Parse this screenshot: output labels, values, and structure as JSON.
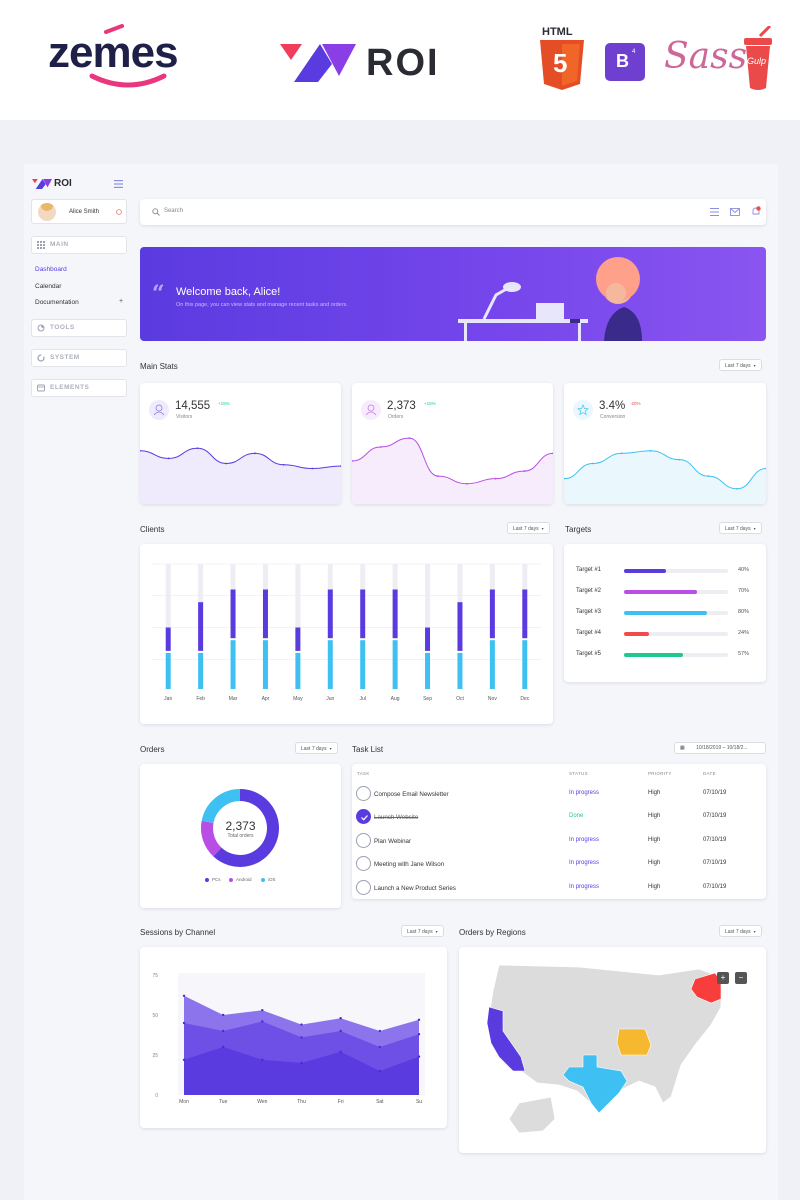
{
  "brand": {
    "zemes": "zemes",
    "roi": "ROI",
    "html_label": "HTML",
    "html_num": "5",
    "bootstrap": "B",
    "bootstrap_ver": "4",
    "sass": "Sass",
    "gulp": "Gulp"
  },
  "sidebar": {
    "logo": "ROI",
    "user_name": "Alice Smith",
    "main_label": "MAIN",
    "links": [
      "Dashboard",
      "Calendar",
      "Documentation"
    ],
    "doc_plus": "+",
    "sections": [
      "TOOLS",
      "SYSTEM",
      "ELEMENTS"
    ]
  },
  "header": {
    "search_placeholder": "Search"
  },
  "welcome": {
    "title": "Welcome back, Alice!",
    "subtitle": "On this page, you can view stats and manage recent tasks and orders."
  },
  "main_stats": {
    "title": "Main Stats",
    "range": "Last 7 days",
    "cards": [
      {
        "value": "14,555",
        "change": "+15%",
        "label": "Visitors",
        "color": "#5a3be0",
        "fill": "#efeafc"
      },
      {
        "value": "2,373",
        "change": "+15%",
        "label": "Orders",
        "color": "#b84ee6",
        "fill": "#f7ecfc"
      },
      {
        "value": "3.4%",
        "change": "-20%",
        "label": "Conversion",
        "color": "#3ec1f2",
        "fill": "#eaf7fd"
      }
    ]
  },
  "clients": {
    "title": "Clients",
    "range": "Last 7 days"
  },
  "targets": {
    "title": "Targets",
    "range": "Last 7 days",
    "items": [
      {
        "label": "Target #1",
        "pct": "40%",
        "value": 0.4,
        "color": "#5a3be0"
      },
      {
        "label": "Target #2",
        "pct": "70%",
        "value": 0.7,
        "color": "#b84ee6"
      },
      {
        "label": "Target #3",
        "pct": "80%",
        "value": 0.8,
        "color": "#3ec1f2"
      },
      {
        "label": "Target #4",
        "pct": "24%",
        "value": 0.24,
        "color": "#f24a4a"
      },
      {
        "label": "Target #5",
        "pct": "57%",
        "value": 0.57,
        "color": "#1fc98e"
      }
    ]
  },
  "orders": {
    "title": "Orders",
    "range": "Last 7 days",
    "total": "2,373",
    "total_label": "Total orders",
    "legend": [
      {
        "name": "PCs",
        "color": "#5a3be0"
      },
      {
        "name": "Android",
        "color": "#b84ee6"
      },
      {
        "name": "iOS",
        "color": "#3ec1f2"
      }
    ]
  },
  "tasks": {
    "title": "Task List",
    "date_range": "10/18/2019 – 10/18/2...",
    "headers": [
      "TASK",
      "STATUS",
      "PRIORITY",
      "DATE"
    ],
    "rows": [
      {
        "name": "Compose Email Newsletter",
        "status": "In progress",
        "priority": "High",
        "date": "07/10/19",
        "done": false
      },
      {
        "name": "Launch Website",
        "status": "Done",
        "priority": "High",
        "date": "07/10/19",
        "done": true
      },
      {
        "name": "Plan Webinar",
        "status": "In progress",
        "priority": "High",
        "date": "07/10/19",
        "done": false
      },
      {
        "name": "Meeting with Jane Wilson",
        "status": "In progress",
        "priority": "High",
        "date": "07/10/19",
        "done": false
      },
      {
        "name": "Launch a New Product Series",
        "status": "In progress",
        "priority": "High",
        "date": "07/10/19",
        "done": false
      }
    ],
    "status_colors": {
      "In progress": "#5a3be0",
      "Done": "#1fc98e"
    }
  },
  "sessions": {
    "title": "Sessions by Channel",
    "range": "Last 7 days"
  },
  "regions": {
    "title": "Orders by Regions",
    "range": "Last 7 days",
    "zoom_in": "+",
    "zoom_out": "−"
  },
  "chart_data": [
    {
      "type": "line",
      "title": "",
      "x": [
        1,
        2,
        3,
        4,
        5,
        6,
        7,
        8
      ],
      "series": [
        {
          "values": [
            42,
            36,
            44,
            32,
            40,
            31,
            28,
            30
          ]
        }
      ]
    },
    {
      "type": "line",
      "title": "",
      "x": [
        1,
        2,
        3,
        4,
        5,
        6,
        7,
        8
      ],
      "series": [
        {
          "values": [
            34,
            45,
            52,
            22,
            16,
            20,
            26,
            40
          ]
        }
      ]
    },
    {
      "type": "line",
      "title": "",
      "x": [
        1,
        2,
        3,
        4,
        5,
        6,
        7,
        8
      ],
      "series": [
        {
          "values": [
            20,
            32,
            40,
            42,
            35,
            22,
            12,
            28
          ]
        }
      ]
    },
    {
      "type": "bar",
      "title": "Clients",
      "categories": [
        "Jan",
        "Feb",
        "Mar",
        "Apr",
        "May",
        "Jun",
        "Jul",
        "Aug",
        "Sep",
        "Oct",
        "Nov",
        "Dec"
      ],
      "series": [
        {
          "values": [
            30,
            30,
            40,
            40,
            30,
            40,
            40,
            40,
            30,
            30,
            40,
            40
          ]
        },
        {
          "values": [
            20,
            40,
            40,
            40,
            20,
            40,
            40,
            40,
            20,
            40,
            40,
            40
          ]
        },
        {
          "values": [
            50,
            30,
            20,
            20,
            50,
            20,
            20,
            20,
            50,
            30,
            20,
            20
          ]
        }
      ],
      "ylim": [
        0,
        100
      ]
    },
    {
      "type": "pie",
      "title": "Orders",
      "categories": [
        "PCs",
        "Android",
        "iOS"
      ],
      "values": [
        62,
        16,
        22
      ]
    },
    {
      "type": "area",
      "title": "Sessions by Channel",
      "categories": [
        "Mon",
        "Tue",
        "Wen",
        "Thu",
        "Fri",
        "Sat",
        "Su"
      ],
      "yticks": [
        "0",
        "25",
        "50",
        "75"
      ],
      "ylim": [
        0,
        75
      ],
      "series": [
        {
          "values": [
            62,
            50,
            53,
            44,
            48,
            40,
            47
          ]
        },
        {
          "values": [
            45,
            40,
            46,
            36,
            40,
            30,
            38
          ]
        },
        {
          "values": [
            22,
            30,
            22,
            20,
            27,
            15,
            24
          ]
        }
      ]
    }
  ]
}
